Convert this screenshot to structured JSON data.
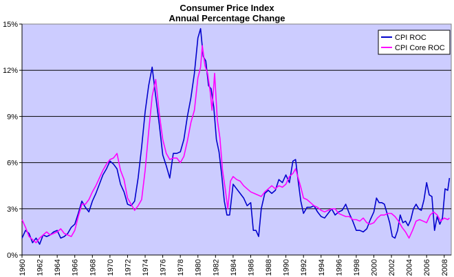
{
  "chart_data": {
    "type": "line",
    "title": "Consumer Price Index",
    "subtitle": "Annual Percentage Change",
    "xlabel": "",
    "ylabel": "",
    "xlim": [
      1960,
      2008.8
    ],
    "ylim": [
      0,
      15
    ],
    "y_ticks": [
      0,
      3,
      6,
      9,
      12,
      15
    ],
    "y_tick_labels": [
      "0%",
      "3%",
      "6%",
      "9%",
      "12%",
      "15%"
    ],
    "x_ticks": [
      1960,
      1962,
      1964,
      1966,
      1968,
      1970,
      1972,
      1974,
      1976,
      1978,
      1980,
      1982,
      1984,
      1986,
      1988,
      1990,
      1992,
      1994,
      1996,
      1998,
      2000,
      2002,
      2004,
      2006,
      2008
    ],
    "x_tick_labels": [
      "1960",
      "1962",
      "1964",
      "1966",
      "1968",
      "1970",
      "1972",
      "1974",
      "1976",
      "1978",
      "1980",
      "1982",
      "1984",
      "1986",
      "1988",
      "1990",
      "1992",
      "1994",
      "1996",
      "1998",
      "2000",
      "2002",
      "2004",
      "2006",
      "2008"
    ],
    "grid": "horizontal",
    "legend_position": "top-right",
    "plot_background": "#ccccff",
    "series": [
      {
        "name": "CPI ROC",
        "color": "#0000cc",
        "points": [
          [
            1960.0,
            1.1
          ],
          [
            1960.4,
            1.6
          ],
          [
            1960.8,
            1.4
          ],
          [
            1961.2,
            0.8
          ],
          [
            1961.6,
            1.1
          ],
          [
            1962.0,
            0.7
          ],
          [
            1962.4,
            1.3
          ],
          [
            1962.8,
            1.2
          ],
          [
            1963.2,
            1.3
          ],
          [
            1963.6,
            1.5
          ],
          [
            1964.0,
            1.6
          ],
          [
            1964.4,
            1.1
          ],
          [
            1964.8,
            1.2
          ],
          [
            1965.2,
            1.4
          ],
          [
            1965.6,
            1.8
          ],
          [
            1966.0,
            2.0
          ],
          [
            1966.4,
            2.7
          ],
          [
            1966.8,
            3.5
          ],
          [
            1967.2,
            3.1
          ],
          [
            1967.6,
            2.8
          ],
          [
            1968.0,
            3.5
          ],
          [
            1968.4,
            4.0
          ],
          [
            1968.8,
            4.6
          ],
          [
            1969.2,
            5.2
          ],
          [
            1969.6,
            5.6
          ],
          [
            1970.0,
            6.1
          ],
          [
            1970.4,
            5.9
          ],
          [
            1970.8,
            5.6
          ],
          [
            1971.2,
            4.6
          ],
          [
            1971.6,
            4.1
          ],
          [
            1972.0,
            3.3
          ],
          [
            1972.4,
            3.2
          ],
          [
            1972.8,
            3.5
          ],
          [
            1973.2,
            5.0
          ],
          [
            1973.6,
            7.0
          ],
          [
            1974.0,
            9.3
          ],
          [
            1974.4,
            11.0
          ],
          [
            1974.8,
            12.2
          ],
          [
            1975.2,
            10.3
          ],
          [
            1975.6,
            8.5
          ],
          [
            1976.0,
            6.5
          ],
          [
            1976.4,
            5.8
          ],
          [
            1976.8,
            5.0
          ],
          [
            1977.2,
            6.6
          ],
          [
            1977.6,
            6.6
          ],
          [
            1978.0,
            6.7
          ],
          [
            1978.4,
            7.5
          ],
          [
            1978.8,
            9.0
          ],
          [
            1979.2,
            10.2
          ],
          [
            1979.6,
            11.8
          ],
          [
            1980.0,
            14.1
          ],
          [
            1980.3,
            14.7
          ],
          [
            1980.6,
            12.9
          ],
          [
            1980.9,
            12.6
          ],
          [
            1981.2,
            11.0
          ],
          [
            1981.5,
            10.8
          ],
          [
            1981.8,
            9.6
          ],
          [
            1982.1,
            7.5
          ],
          [
            1982.4,
            6.7
          ],
          [
            1982.7,
            5.2
          ],
          [
            1983.0,
            3.5
          ],
          [
            1983.3,
            2.6
          ],
          [
            1983.6,
            2.6
          ],
          [
            1984.0,
            4.6
          ],
          [
            1984.4,
            4.3
          ],
          [
            1984.8,
            4.0
          ],
          [
            1985.2,
            3.7
          ],
          [
            1985.6,
            3.2
          ],
          [
            1986.0,
            3.4
          ],
          [
            1986.3,
            1.6
          ],
          [
            1986.6,
            1.6
          ],
          [
            1986.9,
            1.2
          ],
          [
            1987.2,
            3.0
          ],
          [
            1987.6,
            4.0
          ],
          [
            1988.0,
            4.2
          ],
          [
            1988.4,
            4.0
          ],
          [
            1988.8,
            4.2
          ],
          [
            1989.2,
            4.9
          ],
          [
            1989.6,
            4.7
          ],
          [
            1990.0,
            5.2
          ],
          [
            1990.4,
            4.7
          ],
          [
            1990.8,
            6.1
          ],
          [
            1991.1,
            6.2
          ],
          [
            1991.4,
            4.8
          ],
          [
            1991.7,
            3.5
          ],
          [
            1992.0,
            2.7
          ],
          [
            1992.4,
            3.1
          ],
          [
            1992.8,
            3.1
          ],
          [
            1993.2,
            3.2
          ],
          [
            1993.6,
            2.8
          ],
          [
            1994.0,
            2.5
          ],
          [
            1994.4,
            2.4
          ],
          [
            1994.8,
            2.7
          ],
          [
            1995.2,
            3.0
          ],
          [
            1995.6,
            2.6
          ],
          [
            1996.0,
            2.8
          ],
          [
            1996.4,
            2.9
          ],
          [
            1996.8,
            3.3
          ],
          [
            1997.2,
            2.7
          ],
          [
            1997.6,
            2.2
          ],
          [
            1998.0,
            1.6
          ],
          [
            1998.4,
            1.6
          ],
          [
            1998.8,
            1.5
          ],
          [
            1999.2,
            1.7
          ],
          [
            1999.6,
            2.3
          ],
          [
            2000.0,
            2.8
          ],
          [
            2000.3,
            3.7
          ],
          [
            2000.6,
            3.4
          ],
          [
            2000.9,
            3.4
          ],
          [
            2001.2,
            3.3
          ],
          [
            2001.5,
            2.7
          ],
          [
            2001.8,
            2.1
          ],
          [
            2002.1,
            1.2
          ],
          [
            2002.4,
            1.1
          ],
          [
            2002.7,
            1.6
          ],
          [
            2003.0,
            2.6
          ],
          [
            2003.3,
            2.1
          ],
          [
            2003.6,
            2.2
          ],
          [
            2003.9,
            1.9
          ],
          [
            2004.2,
            2.3
          ],
          [
            2004.5,
            3.0
          ],
          [
            2004.8,
            3.3
          ],
          [
            2005.1,
            3.0
          ],
          [
            2005.4,
            2.9
          ],
          [
            2005.7,
            3.6
          ],
          [
            2006.0,
            4.7
          ],
          [
            2006.3,
            3.9
          ],
          [
            2006.6,
            3.8
          ],
          [
            2006.9,
            1.6
          ],
          [
            2007.2,
            2.5
          ],
          [
            2007.5,
            2.0
          ],
          [
            2007.8,
            2.4
          ],
          [
            2008.1,
            4.3
          ],
          [
            2008.4,
            4.2
          ],
          [
            2008.6,
            5.0
          ]
        ]
      },
      {
        "name": "CPI Core ROC",
        "color": "#ff00ff",
        "points": [
          [
            1960.0,
            2.3
          ],
          [
            1960.4,
            1.8
          ],
          [
            1960.8,
            1.2
          ],
          [
            1961.2,
            1.0
          ],
          [
            1961.6,
            0.8
          ],
          [
            1962.0,
            1.1
          ],
          [
            1962.4,
            1.3
          ],
          [
            1962.8,
            1.5
          ],
          [
            1963.2,
            1.3
          ],
          [
            1963.6,
            1.4
          ],
          [
            1964.0,
            1.5
          ],
          [
            1964.4,
            1.7
          ],
          [
            1964.8,
            1.4
          ],
          [
            1965.2,
            1.3
          ],
          [
            1965.6,
            1.2
          ],
          [
            1966.0,
            1.6
          ],
          [
            1966.4,
            2.5
          ],
          [
            1966.8,
            3.3
          ],
          [
            1967.2,
            3.3
          ],
          [
            1967.6,
            3.6
          ],
          [
            1968.0,
            4.1
          ],
          [
            1968.4,
            4.5
          ],
          [
            1968.8,
            5.0
          ],
          [
            1969.2,
            5.5
          ],
          [
            1969.6,
            5.9
          ],
          [
            1970.0,
            6.2
          ],
          [
            1970.4,
            6.3
          ],
          [
            1970.8,
            6.6
          ],
          [
            1971.2,
            5.5
          ],
          [
            1971.6,
            4.9
          ],
          [
            1972.0,
            3.7
          ],
          [
            1972.4,
            3.3
          ],
          [
            1972.8,
            2.9
          ],
          [
            1973.2,
            3.2
          ],
          [
            1973.6,
            3.6
          ],
          [
            1974.0,
            5.5
          ],
          [
            1974.4,
            8.0
          ],
          [
            1974.8,
            10.3
          ],
          [
            1975.2,
            11.4
          ],
          [
            1975.6,
            9.2
          ],
          [
            1976.0,
            7.5
          ],
          [
            1976.4,
            6.6
          ],
          [
            1976.8,
            6.2
          ],
          [
            1977.2,
            6.3
          ],
          [
            1977.6,
            6.3
          ],
          [
            1978.0,
            6.0
          ],
          [
            1978.4,
            6.4
          ],
          [
            1978.8,
            7.4
          ],
          [
            1979.2,
            8.6
          ],
          [
            1979.6,
            9.4
          ],
          [
            1980.0,
            11.5
          ],
          [
            1980.3,
            12.2
          ],
          [
            1980.5,
            13.6
          ],
          [
            1980.8,
            12.3
          ],
          [
            1981.1,
            11.8
          ],
          [
            1981.4,
            10.6
          ],
          [
            1981.6,
            9.4
          ],
          [
            1981.9,
            11.8
          ],
          [
            1982.2,
            8.8
          ],
          [
            1982.5,
            7.6
          ],
          [
            1982.8,
            5.5
          ],
          [
            1983.1,
            4.3
          ],
          [
            1983.4,
            3.0
          ],
          [
            1983.7,
            4.8
          ],
          [
            1984.0,
            5.1
          ],
          [
            1984.4,
            4.9
          ],
          [
            1984.8,
            4.8
          ],
          [
            1985.2,
            4.5
          ],
          [
            1985.6,
            4.3
          ],
          [
            1986.0,
            4.1
          ],
          [
            1986.4,
            4.0
          ],
          [
            1986.8,
            3.9
          ],
          [
            1987.2,
            3.8
          ],
          [
            1987.6,
            4.1
          ],
          [
            1988.0,
            4.3
          ],
          [
            1988.4,
            4.5
          ],
          [
            1988.8,
            4.3
          ],
          [
            1989.2,
            4.5
          ],
          [
            1989.6,
            4.4
          ],
          [
            1990.0,
            4.6
          ],
          [
            1990.4,
            5.1
          ],
          [
            1990.8,
            5.3
          ],
          [
            1991.1,
            5.6
          ],
          [
            1991.4,
            5.0
          ],
          [
            1991.7,
            4.4
          ],
          [
            1992.0,
            3.7
          ],
          [
            1992.4,
            3.6
          ],
          [
            1992.8,
            3.4
          ],
          [
            1993.2,
            3.2
          ],
          [
            1993.6,
            3.1
          ],
          [
            1994.0,
            2.9
          ],
          [
            1994.4,
            2.8
          ],
          [
            1994.8,
            2.9
          ],
          [
            1995.2,
            3.0
          ],
          [
            1995.6,
            3.0
          ],
          [
            1996.0,
            2.7
          ],
          [
            1996.4,
            2.6
          ],
          [
            1996.8,
            2.5
          ],
          [
            1997.2,
            2.5
          ],
          [
            1997.6,
            2.3
          ],
          [
            1998.0,
            2.3
          ],
          [
            1998.4,
            2.2
          ],
          [
            1998.8,
            2.4
          ],
          [
            1999.2,
            2.1
          ],
          [
            1999.6,
            2.0
          ],
          [
            2000.0,
            2.1
          ],
          [
            2000.4,
            2.4
          ],
          [
            2000.8,
            2.6
          ],
          [
            2001.2,
            2.6
          ],
          [
            2001.6,
            2.7
          ],
          [
            2002.0,
            2.7
          ],
          [
            2002.4,
            2.5
          ],
          [
            2002.8,
            2.2
          ],
          [
            2003.2,
            1.8
          ],
          [
            2003.6,
            1.5
          ],
          [
            2004.0,
            1.1
          ],
          [
            2004.4,
            1.6
          ],
          [
            2004.8,
            2.2
          ],
          [
            2005.2,
            2.3
          ],
          [
            2005.6,
            2.2
          ],
          [
            2006.0,
            2.1
          ],
          [
            2006.4,
            2.6
          ],
          [
            2006.8,
            2.8
          ],
          [
            2007.2,
            2.6
          ],
          [
            2007.6,
            2.2
          ],
          [
            2008.0,
            2.4
          ],
          [
            2008.4,
            2.3
          ],
          [
            2008.6,
            2.4
          ]
        ]
      }
    ]
  }
}
